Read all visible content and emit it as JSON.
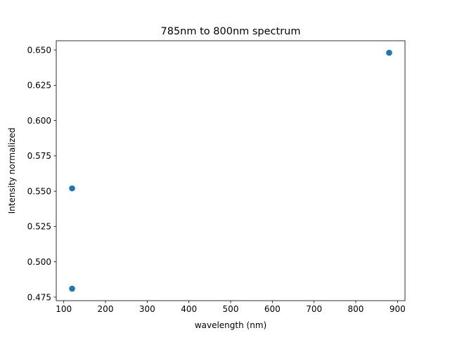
{
  "chart_data": {
    "type": "scatter",
    "title": "785nm to 800nm spectrum",
    "xlabel": "wavelength (nm)",
    "ylabel": "Intensity normalized",
    "xlim": [
      82,
      918
    ],
    "ylim": [
      0.4725,
      0.6565
    ],
    "xticks": [
      100,
      200,
      300,
      400,
      500,
      600,
      700,
      800,
      900
    ],
    "xtick_labels": [
      "100",
      "200",
      "300",
      "400",
      "500",
      "600",
      "700",
      "800",
      "900"
    ],
    "yticks": [
      0.475,
      0.5,
      0.525,
      0.55,
      0.575,
      0.6,
      0.625,
      0.65
    ],
    "ytick_labels": [
      "0.475",
      "0.500",
      "0.525",
      "0.550",
      "0.575",
      "0.600",
      "0.625",
      "0.650"
    ],
    "grid": false,
    "series": [
      {
        "color": "#1f77b4",
        "points": [
          {
            "x": 120,
            "y": 0.481
          },
          {
            "x": 120,
            "y": 0.552
          },
          {
            "x": 880,
            "y": 0.648
          }
        ]
      }
    ]
  }
}
